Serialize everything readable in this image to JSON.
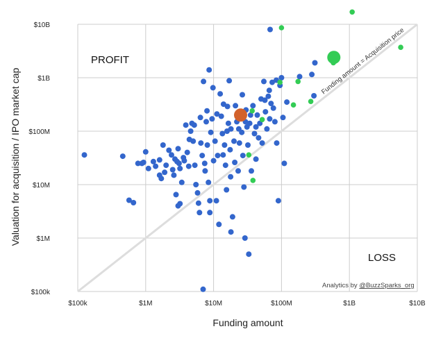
{
  "chart_data": {
    "type": "scatter",
    "x_scale": "log",
    "y_scale": "log",
    "xlabel": "Funding amount",
    "ylabel": "Valuation for acquisition / IPO market cap",
    "xlim": [
      100000,
      10000000000
    ],
    "ylim": [
      100000,
      10000000000
    ],
    "x_ticks": [
      {
        "value": 100000,
        "label": "$100k"
      },
      {
        "value": 1000000,
        "label": "$1M"
      },
      {
        "value": 10000000,
        "label": "$10M"
      },
      {
        "value": 100000000,
        "label": "$100M"
      },
      {
        "value": 1000000000,
        "label": "$1B"
      },
      {
        "value": 10000000000,
        "label": "$10B"
      }
    ],
    "y_ticks": [
      {
        "value": 100000,
        "label": "$100k"
      },
      {
        "value": 1000000,
        "label": "$1M"
      },
      {
        "value": 10000000,
        "label": "$10M"
      },
      {
        "value": 100000000,
        "label": "$100M"
      },
      {
        "value": 1000000000,
        "label": "$1B"
      },
      {
        "value": 10000000000,
        "label": "$10B"
      }
    ],
    "grid": true,
    "region_labels": {
      "profit": "PROFIT",
      "loss": "LOSS"
    },
    "diagonal_label": "Funding amount = Acquisition price",
    "credit": {
      "prefix": "Analytics by ",
      "handle": "@BuzzSparks_org"
    },
    "colors": {
      "blue": "#3366cc",
      "green": "#33cc55",
      "orange": "#d2622c",
      "diagonal": "#dddddd",
      "grid": "#cccccc"
    },
    "series": [
      {
        "color": "blue",
        "points": [
          [
            125000,
            36000000
          ],
          [
            460000,
            34000000
          ],
          [
            570000,
            5100000
          ],
          [
            660000,
            4600000
          ],
          [
            770000,
            25000000
          ],
          [
            880000,
            25000000
          ],
          [
            1000000,
            41000000
          ],
          [
            930000,
            26000000
          ],
          [
            1100000,
            20000000
          ],
          [
            1300000,
            27000000
          ],
          [
            1400000,
            22000000
          ],
          [
            1600000,
            29000000
          ],
          [
            1800000,
            55000000
          ],
          [
            1600000,
            15000000
          ],
          [
            1700000,
            13000000
          ],
          [
            1900000,
            17000000
          ],
          [
            2000000,
            23000000
          ],
          [
            2400000,
            36000000
          ],
          [
            2200000,
            44000000
          ],
          [
            2500000,
            19000000
          ],
          [
            2600000,
            15000000
          ],
          [
            2700000,
            30000000
          ],
          [
            3000000,
            47000000
          ],
          [
            3100000,
            25000000
          ],
          [
            3200000,
            20000000
          ],
          [
            3400000,
            11000000
          ],
          [
            2800000,
            6500000
          ],
          [
            3000000,
            4000000
          ],
          [
            3200000,
            4400000
          ],
          [
            3700000,
            28000000
          ],
          [
            3900000,
            130000000
          ],
          [
            4100000,
            40000000
          ],
          [
            4300000,
            22000000
          ],
          [
            4600000,
            100000000
          ],
          [
            4800000,
            140000000
          ],
          [
            5000000,
            65000000
          ],
          [
            5300000,
            23000000
          ],
          [
            5500000,
            10000000
          ],
          [
            5800000,
            7000000
          ],
          [
            6000000,
            4500000
          ],
          [
            6200000,
            3000000
          ],
          [
            6500000,
            60000000
          ],
          [
            6800000,
            35000000
          ],
          [
            7100000,
            850000000
          ],
          [
            7400000,
            25000000
          ],
          [
            7800000,
            150000000
          ],
          [
            8100000,
            55000000
          ],
          [
            8400000,
            11000000
          ],
          [
            8800000,
            3000000
          ],
          [
            9100000,
            95000000
          ],
          [
            9500000,
            170000000
          ],
          [
            10000000,
            28000000
          ],
          [
            10500000,
            65000000
          ],
          [
            11000000,
            5000000
          ],
          [
            11500000,
            35000000
          ],
          [
            12000000,
            1800000
          ],
          [
            12500000,
            500000000
          ],
          [
            13000000,
            190000000
          ],
          [
            13500000,
            90000000
          ],
          [
            14000000,
            320000000
          ],
          [
            14500000,
            55000000
          ],
          [
            15000000,
            23000000
          ],
          [
            15500000,
            8000000
          ],
          [
            16000000,
            290000000
          ],
          [
            16500000,
            140000000
          ],
          [
            17000000,
            880000000
          ],
          [
            17500000,
            45000000
          ],
          [
            18000000,
            110000000
          ],
          [
            19000000,
            2500000
          ],
          [
            20000000,
            65000000
          ],
          [
            21000000,
            300000000
          ],
          [
            22000000,
            150000000
          ],
          [
            23000000,
            18000000
          ],
          [
            24000000,
            60000000
          ],
          [
            25000000,
            230000000
          ],
          [
            26000000,
            95000000
          ],
          [
            27000000,
            35000000
          ],
          [
            28000000,
            9000000
          ],
          [
            29000000,
            1000000
          ],
          [
            30000000,
            250000000
          ],
          [
            31000000,
            120000000
          ],
          [
            32000000,
            55000000
          ],
          [
            34000000,
            140000000
          ],
          [
            36000000,
            18000000
          ],
          [
            38000000,
            300000000
          ],
          [
            40000000,
            90000000
          ],
          [
            42000000,
            30000000
          ],
          [
            44000000,
            200000000
          ],
          [
            46000000,
            75000000
          ],
          [
            48000000,
            140000000
          ],
          [
            50000000,
            400000000
          ],
          [
            52000000,
            60000000
          ],
          [
            55000000,
            850000000
          ],
          [
            58000000,
            230000000
          ],
          [
            61000000,
            110000000
          ],
          [
            64000000,
            450000000
          ],
          [
            67000000,
            170000000
          ],
          [
            70000000,
            330000000
          ],
          [
            73000000,
            820000000
          ],
          [
            76000000,
            270000000
          ],
          [
            80000000,
            150000000
          ],
          [
            85000000,
            60000000
          ],
          [
            90000000,
            5000000
          ],
          [
            95000000,
            720000000
          ],
          [
            100000000,
            1000000000
          ],
          [
            105000000,
            180000000
          ],
          [
            110000000,
            25000000
          ],
          [
            120000000,
            350000000
          ],
          [
            8800000,
            5000000
          ],
          [
            7000000,
            110000
          ],
          [
            33000000,
            500000
          ],
          [
            18000000,
            1300000
          ],
          [
            7500000,
            18000000
          ],
          [
            9800000,
            650000000
          ],
          [
            11200000,
            210000000
          ],
          [
            13800000,
            36000000
          ],
          [
            15800000,
            100000000
          ],
          [
            17800000,
            14000000
          ],
          [
            20500000,
            26000000
          ],
          [
            23500000,
            110000000
          ],
          [
            26500000,
            480000000
          ],
          [
            29500000,
            150000000
          ],
          [
            4400000,
            70000000
          ],
          [
            5200000,
            130000000
          ],
          [
            6400000,
            180000000
          ],
          [
            8000000,
            240000000
          ],
          [
            3600000,
            32000000
          ],
          [
            2900000,
            27000000
          ],
          [
            84000000,
            900000000
          ],
          [
            185000000,
            1050000000
          ],
          [
            280000000,
            1150000000
          ],
          [
            310000000,
            1900000000
          ],
          [
            300000000,
            460000000
          ],
          [
            68000000,
            8000000000
          ],
          [
            8600000,
            1400000000
          ],
          [
            35000000,
            200000000
          ],
          [
            42000000,
            120000000
          ],
          [
            57000000,
            380000000
          ],
          [
            66000000,
            580000000
          ]
        ]
      },
      {
        "color": "green",
        "points": [
          [
            1100000000,
            17000000000
          ],
          [
            590000000,
            2400000000
          ],
          [
            580000000,
            1900000000
          ],
          [
            5700000000,
            3700000000
          ],
          [
            270000000,
            360000000
          ],
          [
            150000000,
            310000000
          ],
          [
            175000000,
            850000000
          ],
          [
            95000000,
            820000000
          ],
          [
            37000000,
            240000000
          ],
          [
            52000000,
            165000000
          ],
          [
            38000000,
            12000000
          ],
          [
            33000000,
            36000000
          ],
          [
            100000000,
            8600000000
          ]
        ]
      },
      {
        "color": "orange",
        "points": [
          [
            25000000,
            200000000
          ]
        ]
      }
    ],
    "highlight_sizes": [
      {
        "point": [
          590000000,
          2400000000
        ],
        "relative_size": "large"
      },
      {
        "point": [
          25000000,
          200000000
        ],
        "relative_size": "large"
      }
    ]
  }
}
